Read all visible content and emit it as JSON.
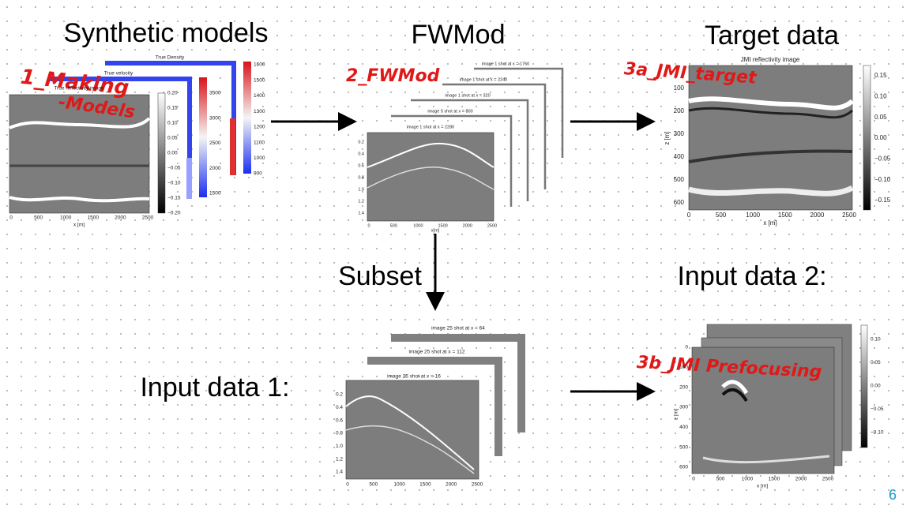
{
  "slide": {
    "headings": [
      "Synthetic models",
      "FWMod",
      "Target data",
      "Subset",
      "Input data 1:",
      "Input data 2:"
    ],
    "annotations": [
      "1_Making",
      "-Models",
      "2_FWMod",
      "3a_JMI_target",
      "3b_JMI Prefocusing"
    ],
    "page_number": "6"
  },
  "panels": {
    "synthetic": {
      "titles": [
        "True Density",
        "True velocity",
        "True reflectivity image"
      ],
      "x_label": "x [m]",
      "x_ticks": [
        "0",
        "500",
        "1000",
        "1500",
        "2000",
        "2500"
      ],
      "cbar_ticks": [
        "0.20",
        "0.15",
        "0.10",
        "0.05",
        "0.00",
        "−0.05",
        "−0.10",
        "−0.15",
        "−0.20"
      ],
      "velocity_ticks": [
        "3500",
        "3000",
        "2500",
        "2000",
        "1500"
      ],
      "density_ticks": [
        "1600",
        "1500",
        "1400",
        "1300",
        "1200",
        "1100",
        "1000",
        "900"
      ]
    },
    "fwmod": {
      "titles": [
        "image 1 shot at x = 1760",
        "image 1 shot at x = 2240",
        "image 1 shot at x = 320",
        "image 5 shot at x = 800",
        "image 1 shot at x = 2280"
      ],
      "x_label": "x[m]",
      "y_ticks": [
        "0.2",
        "0.4",
        "0.6",
        "0.8",
        "1.0",
        "1.2",
        "1.4"
      ],
      "x_ticks": [
        "0",
        "500",
        "1000",
        "1500",
        "2000",
        "2500"
      ]
    },
    "target": {
      "title": "JMI reflectivity image",
      "x_label": "x [m]",
      "y_label": "z [m]",
      "y_ticks": [
        "100",
        "200",
        "300",
        "400",
        "500",
        "600"
      ],
      "x_ticks": [
        "0",
        "500",
        "1000",
        "1500",
        "2000",
        "2500"
      ],
      "cbar_ticks": [
        "0.15",
        "0.10",
        "0.05",
        "0.00",
        "−0.05",
        "−0.10",
        "−0.15"
      ]
    },
    "input1": {
      "titles": [
        "image 25 shot at x = 64",
        "image 25 shot at x = 112",
        "image 25 shot at x = 16"
      ],
      "y_ticks": [
        "0.2",
        "0.4",
        "0.6",
        "0.8",
        "1.0",
        "1.2",
        "1.4"
      ],
      "x_ticks": [
        "0",
        "500",
        "1000",
        "1500",
        "2000",
        "2500"
      ]
    },
    "input2": {
      "x_label": "x [m]",
      "y_label": "z [m]",
      "y_ticks": [
        "0",
        "100",
        "200",
        "300",
        "400",
        "500",
        "600"
      ],
      "x_ticks": [
        "0",
        "500",
        "1000",
        "1500",
        "2000",
        "2500"
      ],
      "cbar_ticks": [
        "0.10",
        "0.05",
        "0.00",
        "−0.05",
        "−0.10"
      ]
    }
  }
}
